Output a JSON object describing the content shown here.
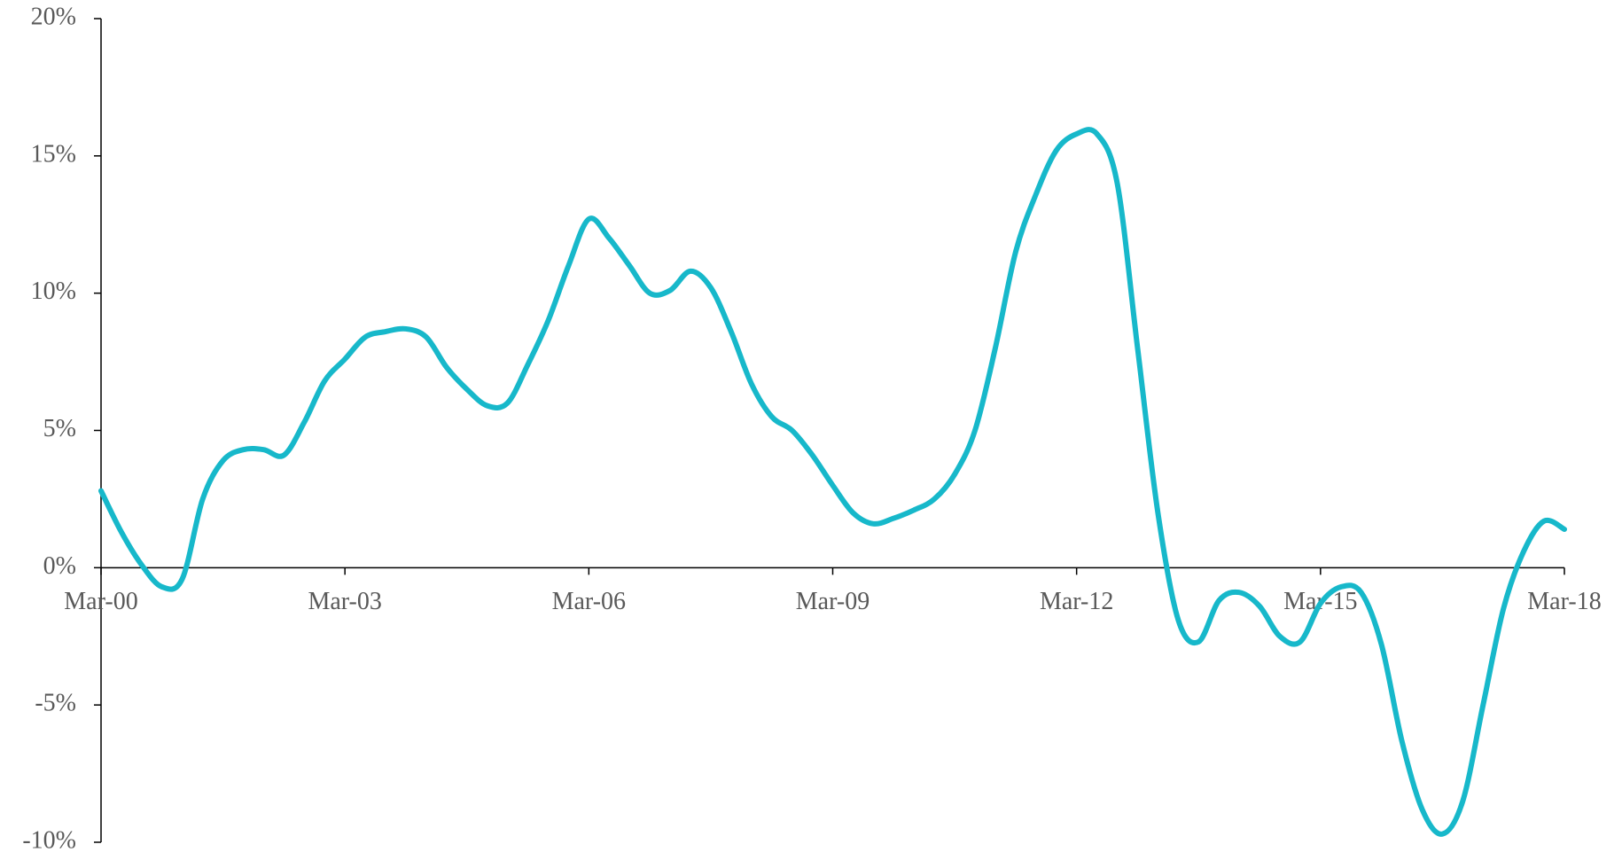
{
  "chart_data": {
    "type": "line",
    "categories": [
      "Mar-00",
      null,
      null,
      null,
      null,
      null,
      null,
      null,
      null,
      null,
      null,
      null,
      "Mar-03",
      null,
      null,
      null,
      null,
      null,
      null,
      null,
      null,
      null,
      null,
      null,
      "Mar-06",
      null,
      null,
      null,
      null,
      null,
      null,
      null,
      null,
      null,
      null,
      null,
      "Mar-09",
      null,
      null,
      null,
      null,
      null,
      null,
      null,
      null,
      null,
      null,
      null,
      "Mar-12",
      null,
      null,
      null,
      null,
      null,
      null,
      null,
      null,
      null,
      null,
      null,
      "Mar-15",
      null,
      null,
      null,
      null,
      null,
      null,
      null,
      null,
      null,
      null,
      null,
      "Mar-18"
    ],
    "series": [
      {
        "color": "#17b8ca",
        "values": [
          2.8,
          1.3,
          0.1,
          -0.7,
          -0.4,
          2.5,
          3.9,
          4.3,
          4.3,
          4.1,
          5.3,
          6.8,
          7.6,
          8.4,
          8.6,
          8.7,
          8.4,
          7.3,
          6.5,
          5.9,
          6.0,
          7.4,
          9.0,
          11.0,
          12.7,
          12.0,
          11.0,
          10.0,
          10.1,
          10.8,
          10.2,
          8.6,
          6.7,
          5.5,
          5.0,
          4.1,
          3.0,
          2.0,
          1.6,
          1.8,
          2.1,
          2.5,
          3.4,
          5.0,
          8.0,
          11.5,
          13.6,
          15.2,
          15.8,
          15.8,
          14.0,
          8.0,
          2.0,
          -1.9,
          -2.7,
          -1.2,
          -0.9,
          -1.4,
          -2.5,
          -2.7,
          -1.3,
          -0.7,
          -0.9,
          -2.8,
          -6.3,
          -8.8,
          -9.7,
          -8.5,
          -5.0,
          -1.5,
          0.6,
          1.7,
          1.4
        ]
      }
    ],
    "ylim": [
      -10,
      20
    ],
    "yticks": [
      {
        "value": -10,
        "label": "-10%"
      },
      {
        "value": -5,
        "label": "-5%"
      },
      {
        "value": 0,
        "label": "0%"
      },
      {
        "value": 5,
        "label": "5%"
      },
      {
        "value": 10,
        "label": "10%"
      },
      {
        "value": 15,
        "label": "15%"
      },
      {
        "value": 20,
        "label": "20%"
      }
    ]
  }
}
